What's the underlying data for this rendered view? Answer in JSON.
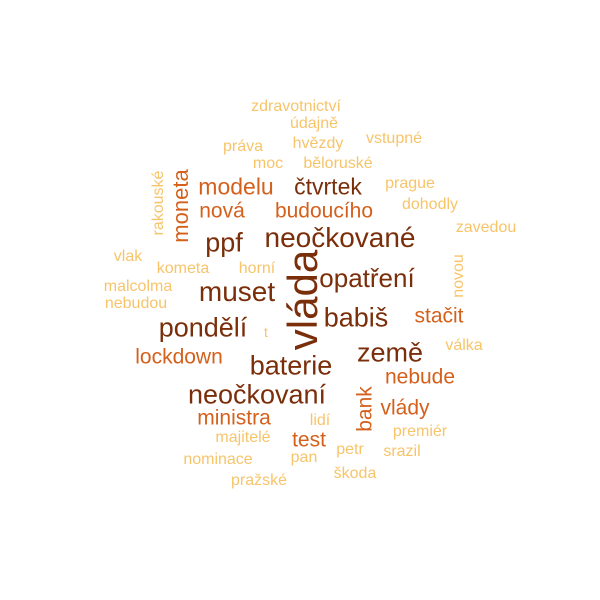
{
  "colors": {
    "dark": "#7a2e0a",
    "mid": "#d4601c",
    "light": "#f7c46a"
  },
  "words": [
    {
      "text": "vláda",
      "tone": "dark",
      "vertical": true
    },
    {
      "text": "neočkované",
      "tone": "dark",
      "vertical": false
    },
    {
      "text": "ppf",
      "tone": "dark",
      "vertical": false
    },
    {
      "text": "muset",
      "tone": "dark",
      "vertical": false
    },
    {
      "text": "opatření",
      "tone": "dark",
      "vertical": false
    },
    {
      "text": "pondělí",
      "tone": "dark",
      "vertical": false
    },
    {
      "text": "babiš",
      "tone": "dark",
      "vertical": false
    },
    {
      "text": "baterie",
      "tone": "dark",
      "vertical": false
    },
    {
      "text": "země",
      "tone": "dark",
      "vertical": false
    },
    {
      "text": "neočkovaní",
      "tone": "dark",
      "vertical": false
    },
    {
      "text": "čtvrtek",
      "tone": "dark",
      "vertical": false
    },
    {
      "text": "modelu",
      "tone": "mid",
      "vertical": false
    },
    {
      "text": "nová",
      "tone": "mid",
      "vertical": false
    },
    {
      "text": "budoucího",
      "tone": "mid",
      "vertical": false
    },
    {
      "text": "moneta",
      "tone": "mid",
      "vertical": true
    },
    {
      "text": "stačit",
      "tone": "mid",
      "vertical": false
    },
    {
      "text": "lockdown",
      "tone": "mid",
      "vertical": false
    },
    {
      "text": "nebude",
      "tone": "mid",
      "vertical": false
    },
    {
      "text": "bank",
      "tone": "mid",
      "vertical": true
    },
    {
      "text": "vlády",
      "tone": "mid",
      "vertical": false
    },
    {
      "text": "ministra",
      "tone": "mid",
      "vertical": false
    },
    {
      "text": "test",
      "tone": "mid",
      "vertical": false
    },
    {
      "text": "zdravotnictví",
      "tone": "light",
      "vertical": false
    },
    {
      "text": "údajně",
      "tone": "light",
      "vertical": false
    },
    {
      "text": "práva",
      "tone": "light",
      "vertical": false
    },
    {
      "text": "hvězdy",
      "tone": "light",
      "vertical": false
    },
    {
      "text": "vstupné",
      "tone": "light",
      "vertical": false
    },
    {
      "text": "moc",
      "tone": "light",
      "vertical": false
    },
    {
      "text": "běloruské",
      "tone": "light",
      "vertical": false
    },
    {
      "text": "rakouské",
      "tone": "light",
      "vertical": true
    },
    {
      "text": "prague",
      "tone": "light",
      "vertical": false
    },
    {
      "text": "dohodly",
      "tone": "light",
      "vertical": false
    },
    {
      "text": "zavedou",
      "tone": "light",
      "vertical": false
    },
    {
      "text": "vlak",
      "tone": "light",
      "vertical": false
    },
    {
      "text": "kometa",
      "tone": "light",
      "vertical": false
    },
    {
      "text": "horní",
      "tone": "light",
      "vertical": false
    },
    {
      "text": "novou",
      "tone": "light",
      "vertical": true
    },
    {
      "text": "malcolma",
      "tone": "light",
      "vertical": false
    },
    {
      "text": "nebudou",
      "tone": "light",
      "vertical": false
    },
    {
      "text": "t",
      "tone": "light",
      "vertical": false
    },
    {
      "text": "válka",
      "tone": "light",
      "vertical": false
    },
    {
      "text": "lidí",
      "tone": "light",
      "vertical": false
    },
    {
      "text": "majitelé",
      "tone": "light",
      "vertical": false
    },
    {
      "text": "premiér",
      "tone": "light",
      "vertical": false
    },
    {
      "text": "petr",
      "tone": "light",
      "vertical": false
    },
    {
      "text": "srazil",
      "tone": "light",
      "vertical": false
    },
    {
      "text": "nominace",
      "tone": "light",
      "vertical": false
    },
    {
      "text": "pan",
      "tone": "light",
      "vertical": false
    },
    {
      "text": "pražské",
      "tone": "light",
      "vertical": false
    },
    {
      "text": "škoda",
      "tone": "light",
      "vertical": false
    }
  ]
}
